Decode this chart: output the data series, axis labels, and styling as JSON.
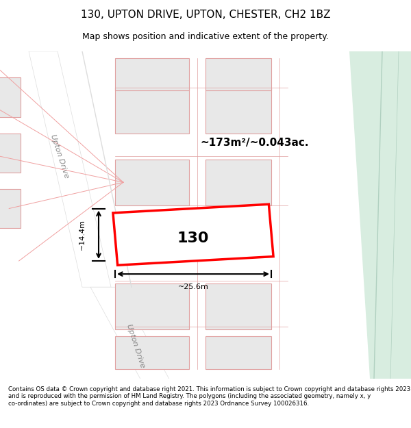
{
  "title": "130, UPTON DRIVE, UPTON, CHESTER, CH2 1BZ",
  "subtitle": "Map shows position and indicative extent of the property.",
  "footer": "Contains OS data © Crown copyright and database right 2021. This information is subject to Crown copyright and database rights 2023 and is reproduced with the permission of HM Land Registry. The polygons (including the associated geometry, namely x, y co-ordinates) are subject to Crown copyright and database rights 2023 Ordnance Survey 100026316.",
  "area_label": "~173m²/~0.043ac.",
  "number_label": "130",
  "dim_width": "~25.6m",
  "dim_height": "~14.4m",
  "bg_color": "#f5f5f5",
  "map_bg": "#ffffff",
  "road_color": "#ffffff",
  "building_fill": "#e0e0e0",
  "building_edge": "#c8a0a0",
  "highlight_fill": "#ffffff",
  "highlight_edge": "#ff0000",
  "green_area": "#d8ede0",
  "street_label1": "Upton Drive",
  "street_label2": "Upton Drive"
}
